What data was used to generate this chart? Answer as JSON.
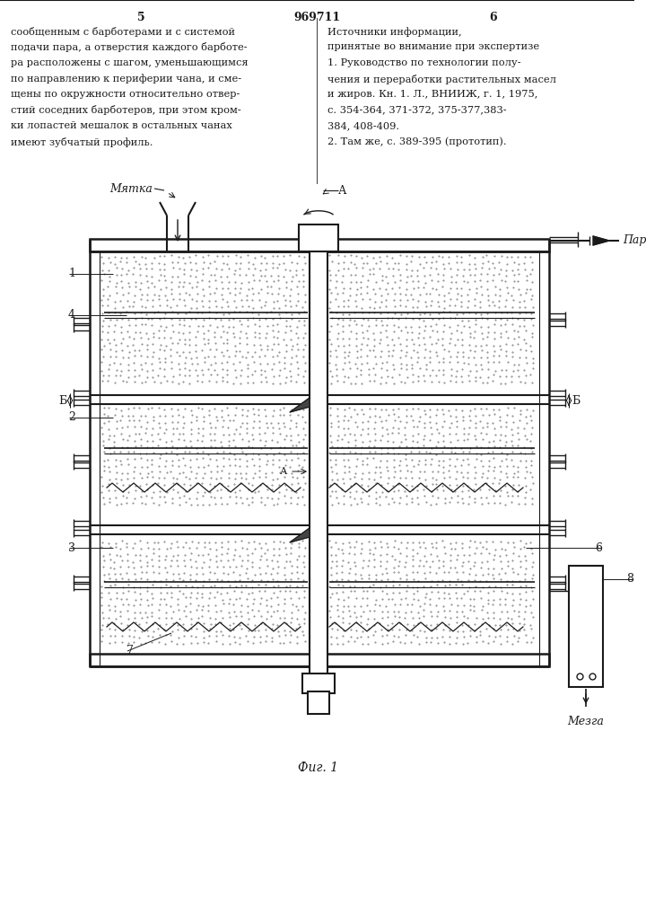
{
  "page_numbers": [
    "5",
    "6"
  ],
  "patent_number": "969711",
  "left_text": [
    "сообщенным с барботерами и с системой",
    "подачи пара, а отверстия каждого барботе-",
    "ра расположены с шагом, уменьшающимся",
    "по направлению к периферии чана, и сме-",
    "щены по окружности относительно отвер-",
    "стий соседних барботеров, при этом кром-",
    "ки лопастей мешалок в остальных чанах",
    "имеют зубчатый профиль."
  ],
  "right_header": "Источники информации,",
  "right_subheader": "принятые во внимание при экспертизе",
  "right_text": [
    "1. Руководство по технологии полу-",
    "чения и переработки растительных масел",
    "и жиров. Кн. 1. Л., ВНИИЖ, г. 1, 1975,",
    "с. 354-364, 371-372, 375-377,383-",
    "384, 408-409.",
    "2. Там же, с. 389-395 (прототип)."
  ],
  "figure_caption": "Фиг. 1",
  "bg_color": "#ffffff",
  "line_color": "#1a1a1a"
}
